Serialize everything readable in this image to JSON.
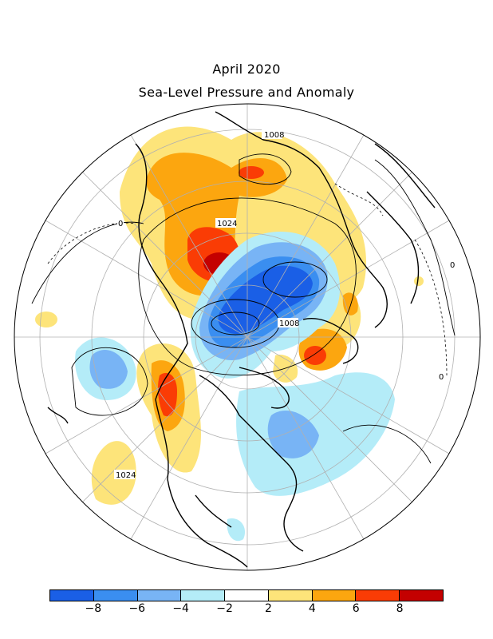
{
  "title": "April 2020",
  "subtitle": "Sea-Level Pressure and Anomaly",
  "contour_labels": [
    "1008",
    "1024",
    "0",
    "1008",
    "1024",
    "0",
    "0"
  ],
  "colorbar": {
    "colors": [
      "#1a5fe6",
      "#3a8ef0",
      "#78b4f5",
      "#b4ecf8",
      "#ffffff",
      "#fde47a",
      "#fca60f",
      "#fa3c05",
      "#c40000"
    ],
    "ticks": [
      "−8",
      "−6",
      "−4",
      "−2",
      "2",
      "4",
      "6",
      "8"
    ]
  },
  "chart_data": {
    "type": "heatmap",
    "title": "April 2020",
    "subtitle": "Sea-Level Pressure and Anomaly",
    "projection": "north polar stereographic",
    "colorbar_levels": [
      -8,
      -6,
      -4,
      -2,
      2,
      4,
      6,
      8
    ],
    "contour_labels_hpa": [
      1008,
      1024,
      1008,
      1024
    ],
    "anomaly_contour_label": 0
  }
}
